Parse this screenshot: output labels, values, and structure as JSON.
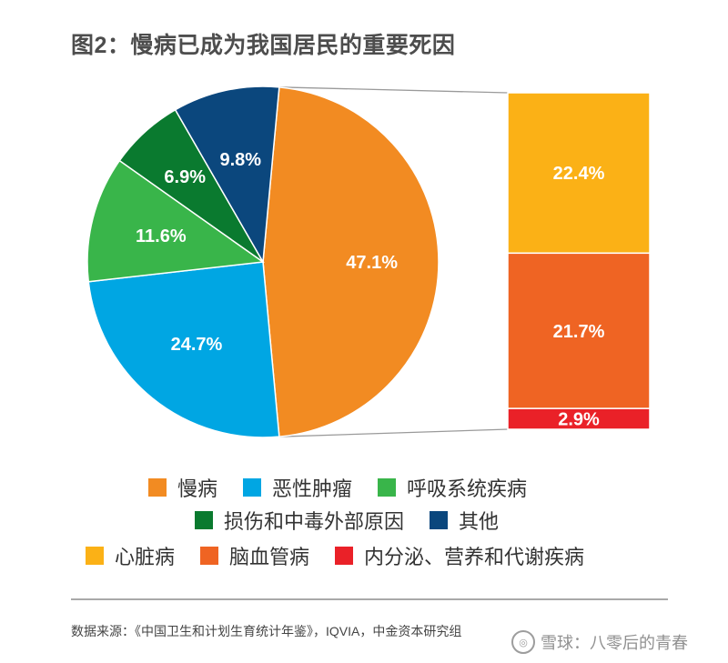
{
  "title": "图2：慢病已成为我国居民的重要死因",
  "chart_data": [
    {
      "type": "pie",
      "slices": [
        {
          "name": "慢病",
          "value": 47.1,
          "label": "47.1%",
          "color": "#f28b22"
        },
        {
          "name": "恶性肿瘤",
          "value": 24.7,
          "label": "24.7%",
          "color": "#00a6e3"
        },
        {
          "name": "呼吸系统疾病",
          "value": 11.6,
          "label": "11.6%",
          "color": "#39b54a"
        },
        {
          "name": "损伤和中毒外部原因",
          "value": 6.9,
          "label": "6.9%",
          "color": "#0a7a2f"
        },
        {
          "name": "其他",
          "value": 9.8,
          "label": "9.8%",
          "color": "#0b477d"
        }
      ]
    },
    {
      "type": "bar",
      "stacked": true,
      "breakdown_of": "慢病",
      "series": [
        {
          "name": "心脏病",
          "value": 22.4,
          "label": "22.4%",
          "color": "#fbb116"
        },
        {
          "name": "脑血管病",
          "value": 21.7,
          "label": "21.7%",
          "color": "#ef6423"
        },
        {
          "name": "内分泌、营养和代谢疾病",
          "value": 2.9,
          "label": "2.9%",
          "color": "#ea2128"
        }
      ]
    }
  ],
  "legend": {
    "row1": [
      {
        "label": "慢病",
        "color": "#f28b22"
      },
      {
        "label": "恶性肿瘤",
        "color": "#00a6e3"
      },
      {
        "label": "呼吸系统疾病",
        "color": "#39b54a"
      }
    ],
    "row2": [
      {
        "label": "损伤和中毒外部原因",
        "color": "#0a7a2f"
      },
      {
        "label": "其他",
        "color": "#0b477d"
      }
    ],
    "row3": [
      {
        "label": "心脏病",
        "color": "#fbb116"
      },
      {
        "label": "脑血管病",
        "color": "#ef6423"
      },
      {
        "label": "内分泌、营养和代谢疾病",
        "color": "#ea2128"
      }
    ]
  },
  "source": "数据来源：《中国卫生和计划生育统计年鉴》，IQVIA，中金资本研究组",
  "watermark": "雪球：八零后的青春"
}
